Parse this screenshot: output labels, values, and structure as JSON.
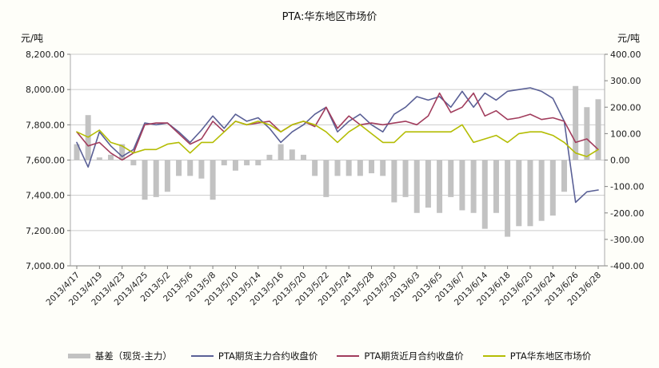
{
  "left_axis": {
    "unit": "元/吨",
    "ticks": [
      "8,200.00",
      "8,000.00",
      "7,800.00",
      "7,600.00",
      "7,400.00",
      "7,200.00",
      "7,000.00"
    ],
    "tick_values": [
      8200,
      8000,
      7800,
      7600,
      7400,
      7200,
      7000
    ]
  },
  "right_axis": {
    "unit": "元/吨",
    "ticks": [
      "400.00",
      "300.00",
      "200.00",
      "100.00",
      "0.00",
      "-100.00",
      "-200.00",
      "-300.00",
      "-400.00"
    ],
    "tick_values": [
      400,
      300,
      200,
      100,
      0,
      -100,
      -200,
      -300,
      -400
    ]
  },
  "chart_data": {
    "type": "combo",
    "title": "PTA:华东地区市场价",
    "left_ylim": [
      7000,
      8200
    ],
    "right_ylim": [
      -400,
      400
    ],
    "grid": true,
    "legend_position": "bottom",
    "x_label_every": 2,
    "x": [
      "2013/4/17",
      "2013/4/18",
      "2013/4/19",
      "2013/4/22",
      "2013/4/23",
      "2013/4/24",
      "2013/4/25",
      "2013/4/26",
      "2013/5/2",
      "2013/5/3",
      "2013/5/6",
      "2013/5/7",
      "2013/5/8",
      "2013/5/9",
      "2013/5/10",
      "2013/5/13",
      "2013/5/14",
      "2013/5/15",
      "2013/5/16",
      "2013/5/17",
      "2013/5/20",
      "2013/5/21",
      "2013/5/22",
      "2013/5/23",
      "2013/5/24",
      "2013/5/27",
      "2013/5/28",
      "2013/5/29",
      "2013/5/30",
      "2013/5/31",
      "2013/6/3",
      "2013/6/4",
      "2013/6/5",
      "2013/6/6",
      "2013/6/7",
      "2013/6/13",
      "2013/6/14",
      "2013/6/17",
      "2013/6/18",
      "2013/6/19",
      "2013/6/20",
      "2013/6/21",
      "2013/6/24",
      "2013/6/25",
      "2013/6/26",
      "2013/6/27",
      "2013/6/28"
    ],
    "series": [
      {
        "name": "基差（现货-主力）",
        "type": "bar",
        "axis": "right",
        "color": "#c2c2c2",
        "values": [
          60,
          170,
          10,
          20,
          60,
          -20,
          -150,
          -140,
          -120,
          -60,
          -60,
          -70,
          -150,
          -20,
          -40,
          -20,
          -20,
          20,
          60,
          40,
          20,
          -60,
          -140,
          -60,
          -60,
          -60,
          -50,
          -60,
          -160,
          -140,
          -200,
          -180,
          -200,
          -140,
          -190,
          -200,
          -260,
          -200,
          -290,
          -250,
          -250,
          -230,
          -210,
          -120,
          280,
          200,
          230
        ]
      },
      {
        "name": "PTA期货主力合约收盘价",
        "type": "line",
        "axis": "left",
        "color": "#5a6096",
        "values": [
          7700,
          7560,
          7760,
          7680,
          7620,
          7660,
          7810,
          7800,
          7810,
          7760,
          7700,
          7770,
          7850,
          7780,
          7860,
          7820,
          7840,
          7780,
          7700,
          7760,
          7800,
          7860,
          7900,
          7760,
          7820,
          7860,
          7800,
          7760,
          7860,
          7900,
          7960,
          7940,
          7960,
          7900,
          7990,
          7900,
          7980,
          7940,
          7990,
          8000,
          8010,
          7990,
          7950,
          7820,
          7360,
          7420,
          7430
        ]
      },
      {
        "name": "PTA期货近月合约收盘价",
        "type": "line",
        "axis": "left",
        "color": "#a13c5c",
        "values": [
          7760,
          7680,
          7700,
          7640,
          7600,
          7640,
          7800,
          7810,
          7810,
          7750,
          7690,
          7720,
          7820,
          7760,
          7820,
          7800,
          7810,
          7820,
          7760,
          7800,
          7820,
          7790,
          7900,
          7780,
          7850,
          7800,
          7810,
          7800,
          7810,
          7820,
          7800,
          7850,
          7980,
          7870,
          7900,
          7980,
          7850,
          7880,
          7830,
          7840,
          7860,
          7830,
          7840,
          7820,
          7700,
          7720,
          7660
        ]
      },
      {
        "name": "PTA华东地区市场价",
        "type": "line",
        "axis": "left",
        "color": "#b4bd04",
        "values": [
          7760,
          7730,
          7770,
          7700,
          7680,
          7640,
          7660,
          7660,
          7690,
          7700,
          7640,
          7700,
          7700,
          7760,
          7820,
          7800,
          7820,
          7800,
          7760,
          7800,
          7820,
          7800,
          7760,
          7700,
          7760,
          7800,
          7750,
          7700,
          7700,
          7760,
          7760,
          7760,
          7760,
          7760,
          7800,
          7700,
          7720,
          7740,
          7700,
          7750,
          7760,
          7760,
          7740,
          7700,
          7640,
          7620,
          7660
        ]
      }
    ]
  }
}
